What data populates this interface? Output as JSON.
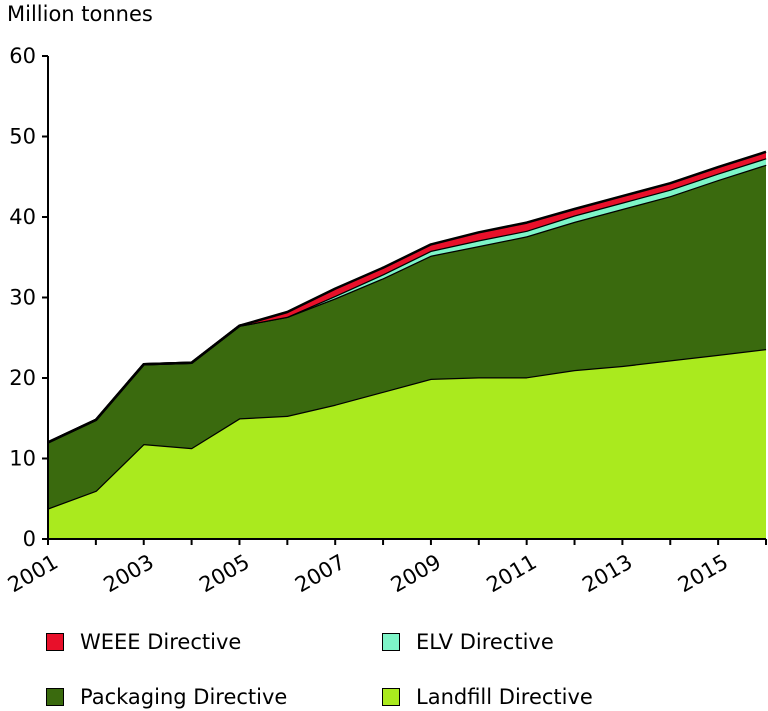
{
  "chart_data": {
    "type": "area",
    "stacked": true,
    "ylabel": "Million tonnes",
    "xlabel": "",
    "ylim": [
      0,
      60
    ],
    "yticks": [
      0,
      10,
      20,
      30,
      40,
      50,
      60
    ],
    "x": [
      2001,
      2002,
      2003,
      2004,
      2005,
      2006,
      2007,
      2008,
      2009,
      2010,
      2011,
      2012,
      2013,
      2014,
      2015,
      2016
    ],
    "xticks": [
      "2001",
      "2003",
      "2005",
      "2007",
      "2009",
      "2011",
      "2013",
      "2015"
    ],
    "grid": false,
    "legend_position": "bottom",
    "series": [
      {
        "name": "Landfill Directive",
        "color": "#aaea1e",
        "values": [
          3.8,
          6.0,
          11.8,
          11.3,
          15.0,
          15.3,
          16.7,
          18.3,
          19.9,
          20.1,
          20.1,
          21.0,
          21.5,
          22.2,
          22.9,
          23.6
        ]
      },
      {
        "name": "Packaging Directive",
        "color": "#3a6a0e",
        "values": [
          8.2,
          8.8,
          9.9,
          10.6,
          11.5,
          12.3,
          13.2,
          14.1,
          15.3,
          16.3,
          17.5,
          18.4,
          19.5,
          20.4,
          21.7,
          22.9
        ]
      },
      {
        "name": "ELV Directive",
        "color": "#7ef5c8",
        "values": [
          0.0,
          0.0,
          0.0,
          0.0,
          0.0,
          0.0,
          0.3,
          0.5,
          0.6,
          0.7,
          0.7,
          0.8,
          0.8,
          0.8,
          0.8,
          0.8
        ]
      },
      {
        "name": "WEEE Directive",
        "color": "#e8102a",
        "values": [
          0.0,
          0.0,
          0.0,
          0.0,
          0.0,
          0.6,
          0.9,
          0.8,
          0.8,
          1.0,
          1.0,
          0.8,
          0.8,
          0.8,
          0.8,
          0.8
        ]
      }
    ]
  },
  "legend": [
    {
      "label": "WEEE Directive",
      "color": "#e8102a"
    },
    {
      "label": "ELV Directive",
      "color": "#7ef5c8"
    },
    {
      "label": "Packaging Directive",
      "color": "#3a6a0e"
    },
    {
      "label": "Landfill Directive",
      "color": "#aaea1e"
    }
  ]
}
